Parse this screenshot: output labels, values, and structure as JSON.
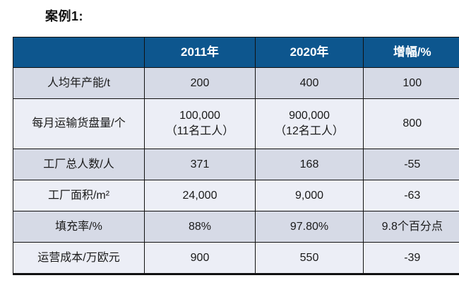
{
  "page": {
    "title": "案例1:"
  },
  "chart_data": {
    "type": "table",
    "title": "案例1:",
    "columns": [
      "",
      "2011年",
      "2020年",
      "增幅/%"
    ],
    "rows": [
      [
        "人均年产能/t",
        "200",
        "400",
        "100"
      ],
      [
        "每月运输货盘量/个",
        "100,000\n（11名工人）",
        "900,000\n（12名工人）",
        "800"
      ],
      [
        "工厂总人数/人",
        "371",
        "168",
        "-55"
      ],
      [
        "工厂面积/m²",
        "24,000",
        "9,000",
        "-63"
      ],
      [
        "填充率/%",
        "88%",
        "97.80%",
        "9.8个百分点"
      ],
      [
        "运营成本/万欧元",
        "900",
        "550",
        "-39"
      ]
    ]
  },
  "colors": {
    "header_bg": "#0d568e",
    "header_text": "#ffffff",
    "row_odd_bg": "#d6dae6",
    "row_even_bg": "#eceef6",
    "border": "#111111",
    "body_text": "#1a1a1a"
  }
}
